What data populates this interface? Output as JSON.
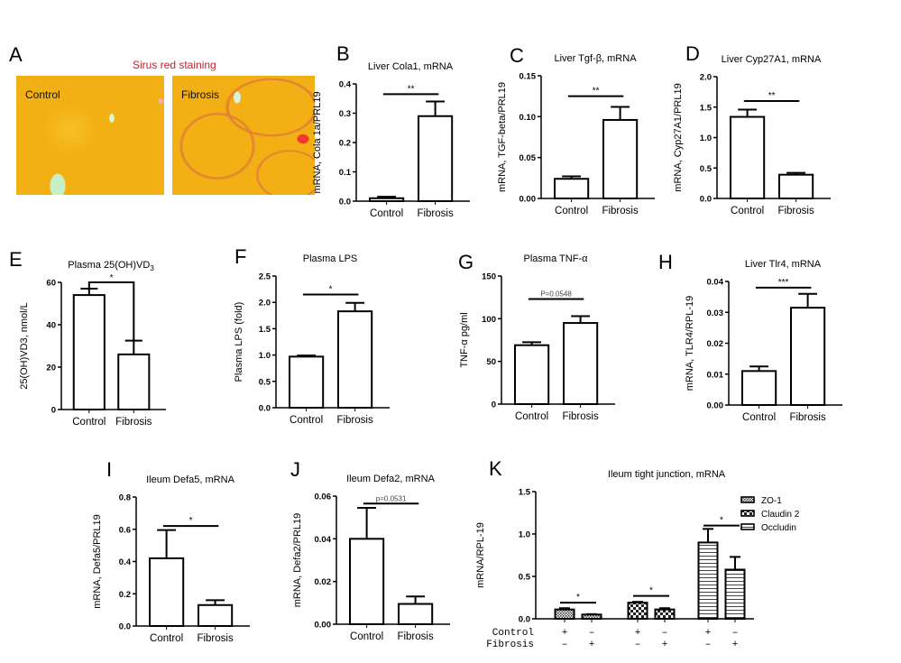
{
  "panel_A": {
    "label": "A",
    "title": "Sirus red staining",
    "images": [
      {
        "caption": "Control"
      },
      {
        "caption": "Fibrosis"
      }
    ],
    "colors": {
      "title": "#c0202a",
      "stain_base": "#f2b014",
      "fibrosis_red": "#ef3b2c"
    }
  },
  "chart_data": [
    {
      "id": "B",
      "label": "B",
      "type": "bar",
      "title": "Liver Cola1, mRNA",
      "ylabel": "mRNA, Cola 1a/PRL19",
      "xlabel": "",
      "categories": [
        "Control",
        "Fibrosis"
      ],
      "values": [
        0.01,
        0.29
      ],
      "errors": [
        0.005,
        0.05
      ],
      "ylim": [
        0,
        0.4
      ],
      "yticks": [
        "0.0",
        "0.1",
        "0.2",
        "0.3",
        "0.4"
      ],
      "yticks_values": [
        0,
        0.1,
        0.2,
        0.3,
        0.4
      ],
      "significance": {
        "text": "**",
        "level": 0.365
      }
    },
    {
      "id": "C",
      "label": "C",
      "type": "bar",
      "title": "Liver Tgf-β, mRNA",
      "ylabel": "mRNA, TGF-beta/PRL19",
      "xlabel": "",
      "categories": [
        "Control",
        "Fibrosis"
      ],
      "values": [
        0.024,
        0.096
      ],
      "errors": [
        0.003,
        0.016
      ],
      "ylim": [
        0,
        0.15
      ],
      "yticks": [
        "0.00",
        "0.05",
        "0.10",
        "0.15"
      ],
      "yticks_values": [
        0,
        0.05,
        0.1,
        0.15
      ],
      "significance": {
        "text": "**",
        "level": 0.125
      }
    },
    {
      "id": "D",
      "label": "D",
      "type": "bar",
      "title": "Liver Cyp27A1, mRNA",
      "ylabel": "mRNA, Cyp27A1/PRL19",
      "xlabel": "",
      "categories": [
        "Control",
        "Fibrosis"
      ],
      "values": [
        1.34,
        0.39
      ],
      "errors": [
        0.12,
        0.03
      ],
      "ylim": [
        0,
        2.0
      ],
      "yticks": [
        "0.0",
        "0.5",
        "1.0",
        "1.5",
        "2.0"
      ],
      "yticks_values": [
        0,
        0.5,
        1.0,
        1.5,
        2.0
      ],
      "significance": {
        "text": "**",
        "level": 1.6
      }
    },
    {
      "id": "E",
      "label": "E",
      "type": "bar",
      "title": "Plasma 25(OH)VD",
      "title_sub": "3",
      "ylabel": "25(OH)VD3, nmol/L",
      "xlabel": "",
      "categories": [
        "Control",
        "Fibrosis"
      ],
      "values": [
        54,
        26
      ],
      "errors": [
        3,
        6.5
      ],
      "ylim": [
        0,
        60
      ],
      "yticks": [
        "0",
        "20",
        "40",
        "60"
      ],
      "yticks_values": [
        0,
        20,
        40,
        60
      ],
      "significance": {
        "text": "*",
        "level": 60,
        "bracket": true
      }
    },
    {
      "id": "F",
      "label": "F",
      "type": "bar",
      "title": "Plasma LPS",
      "ylabel": "Plasma LPS (fold)",
      "xlabel": "",
      "categories": [
        "Control",
        "Fibrosis"
      ],
      "values": [
        0.97,
        1.83
      ],
      "errors": [
        0.02,
        0.16
      ],
      "ylim": [
        0,
        2.5
      ],
      "yticks": [
        "0.0",
        "0.5",
        "1.0",
        "1.5",
        "2.0",
        "2.5"
      ],
      "yticks_values": [
        0,
        0.5,
        1.0,
        1.5,
        2.0,
        2.5
      ],
      "significance": {
        "text": "*",
        "level": 2.15
      }
    },
    {
      "id": "G",
      "label": "G",
      "type": "bar",
      "title": "Plasma TNF-α",
      "ylabel": "TNF-α pg/ml",
      "xlabel": "",
      "categories": [
        "Control",
        "Fibrosis"
      ],
      "values": [
        69,
        95
      ],
      "errors": [
        3.5,
        8
      ],
      "ylim": [
        0,
        150
      ],
      "yticks": [
        "0",
        "50",
        "100",
        "150"
      ],
      "yticks_values": [
        0,
        50,
        100,
        150
      ],
      "significance": {
        "text": "P=0.0548",
        "level": 123,
        "is_pvalue": true
      }
    },
    {
      "id": "H",
      "label": "H",
      "type": "bar",
      "title": "Liver Tlr4, mRNA",
      "ylabel": "mRNA, TLR4/RPL-19",
      "xlabel": "",
      "categories": [
        "Control",
        "Fibrosis"
      ],
      "values": [
        0.011,
        0.0315
      ],
      "errors": [
        0.0015,
        0.0045
      ],
      "ylim": [
        0,
        0.04
      ],
      "yticks": [
        "0.00",
        "0.01",
        "0.02",
        "0.03",
        "0.04"
      ],
      "yticks_values": [
        0,
        0.01,
        0.02,
        0.03,
        0.04
      ],
      "significance": {
        "text": "***",
        "level": 0.038
      }
    },
    {
      "id": "I",
      "label": "I",
      "type": "bar",
      "title": "Ileum Defa5, mRNA",
      "ylabel": "mRNA, Defa5/PRL19",
      "xlabel": "",
      "categories": [
        "Control",
        "Fibrosis"
      ],
      "values": [
        0.42,
        0.13
      ],
      "errors": [
        0.175,
        0.03
      ],
      "ylim": [
        0,
        0.8
      ],
      "yticks": [
        "0.0",
        "0.2",
        "0.4",
        "0.6",
        "0.8"
      ],
      "yticks_values": [
        0,
        0.2,
        0.4,
        0.6,
        0.8
      ],
      "significance": {
        "text": "*",
        "level": 0.62
      }
    },
    {
      "id": "J",
      "label": "J",
      "type": "bar",
      "title": "Ileum Defa2, mRNA",
      "ylabel": "mRNA,  Defa2/PRL19",
      "xlabel": "",
      "categories": [
        "Control",
        "Fibrosis"
      ],
      "values": [
        0.04,
        0.0095
      ],
      "errors": [
        0.0145,
        0.0035
      ],
      "ylim": [
        0,
        0.06
      ],
      "yticks": [
        "0.00",
        "0.02",
        "0.04",
        "0.06"
      ],
      "yticks_values": [
        0,
        0.02,
        0.04,
        0.06
      ],
      "significance": {
        "text": "p=0.0531",
        "level": 0.0565,
        "is_pvalue": true
      }
    },
    {
      "id": "K",
      "label": "K",
      "type": "bar",
      "title": "Ileum tight junction, mRNA",
      "ylabel": "mRNA/RPL-19",
      "xlabel": "",
      "groups": [
        "ZO-1",
        "Claudin 2",
        "Occludin"
      ],
      "series": [
        {
          "name": "Control",
          "values": [
            0.11,
            0.19,
            0.9
          ],
          "errors": [
            0.015,
            0.01,
            0.16
          ]
        },
        {
          "name": "Fibrosis",
          "values": [
            0.05,
            0.11,
            0.58
          ],
          "errors": [
            0.005,
            0.015,
            0.15
          ]
        }
      ],
      "legend": [
        "ZO-1",
        "Claudin 2",
        "Occludin"
      ],
      "legend_position": "top-right",
      "ylim": [
        0,
        1.5
      ],
      "yticks": [
        "0.0",
        "0.5",
        "1.0",
        "1.5"
      ],
      "yticks_values": [
        0,
        0.5,
        1.0,
        1.5
      ],
      "row_labels": [
        "Control",
        "Fibrosis"
      ],
      "row_signs": [
        [
          "+",
          "–",
          "+",
          "–",
          "+",
          "–"
        ],
        [
          "–",
          "+",
          "–",
          "+",
          "–",
          "+"
        ]
      ],
      "significance": [
        {
          "text": "*",
          "level": 0.19
        },
        {
          "text": "*",
          "level": 0.27
        },
        {
          "text": "*",
          "level": 1.1
        }
      ]
    }
  ]
}
